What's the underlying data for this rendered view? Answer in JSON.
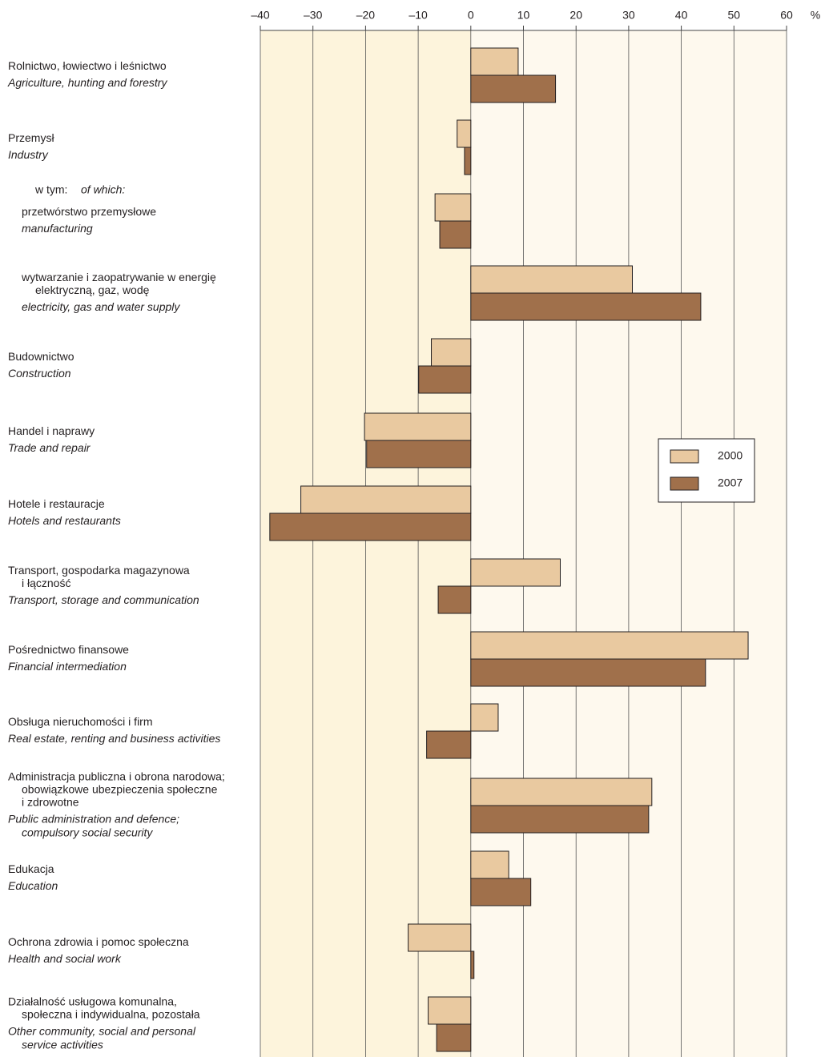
{
  "chart_data": {
    "type": "bar",
    "orientation": "horizontal",
    "unit_label": "%",
    "annotations": [
      "w tym:",
      "of which:"
    ],
    "categories": [
      {
        "pl": [
          "Rolnictwo, łowiectwo i leśnictwo"
        ],
        "en": [
          "Agriculture, hunting and forestry"
        ]
      },
      {
        "pl": [
          "Przemysł"
        ],
        "en": [
          "Industry"
        ]
      },
      {
        "pl": [
          "przetwórstwo przemysłowe"
        ],
        "en": [
          "manufacturing"
        ]
      },
      {
        "pl": [
          "wytwarzanie i zaopatrywanie w energię",
          "elektryczną, gaz, wodę"
        ],
        "en": [
          "electricity, gas and water supply"
        ]
      },
      {
        "pl": [
          "Budownictwo"
        ],
        "en": [
          "Construction"
        ]
      },
      {
        "pl": [
          "Handel i naprawy"
        ],
        "en": [
          "Trade and repair"
        ]
      },
      {
        "pl": [
          "Hotele i restauracje"
        ],
        "en": [
          "Hotels and restaurants"
        ]
      },
      {
        "pl": [
          "Transport, gospodarka magazynowa",
          "i łączność"
        ],
        "en": [
          "Transport, storage and communication"
        ]
      },
      {
        "pl": [
          "Pośrednictwo finansowe"
        ],
        "en": [
          "Financial intermediation"
        ]
      },
      {
        "pl": [
          "Obsługa nieruchomości i firm"
        ],
        "en": [
          "Real estate, renting and business activities"
        ]
      },
      {
        "pl": [
          "Administracja publiczna i obrona narodowa;",
          "obowiązkowe ubezpieczenia społeczne",
          "i zdrowotne"
        ],
        "en": [
          "Public administration and defence;",
          "compulsory social security"
        ]
      },
      {
        "pl": [
          "Edukacja"
        ],
        "en": [
          "Education"
        ]
      },
      {
        "pl": [
          "Ochrona zdrowia i pomoc społeczna"
        ],
        "en": [
          "Health and social work"
        ]
      },
      {
        "pl": [
          "Działalność usługowa komunalna,",
          "społeczna i indywidualna, pozostała"
        ],
        "en": [
          "Other community, social and personal",
          "service activities"
        ]
      }
    ],
    "series": [
      {
        "name": "2000",
        "color": "#e9c9a0",
        "values": [
          9.0,
          -2.6,
          -6.8,
          30.7,
          -7.5,
          -20.2,
          -32.3,
          17.0,
          52.7,
          5.2,
          34.4,
          7.2,
          -11.9,
          -8.1
        ]
      },
      {
        "name": "2007",
        "color": "#a0704b",
        "values": [
          16.1,
          -1.2,
          -5.9,
          43.7,
          -9.9,
          -19.8,
          -38.2,
          -6.2,
          44.6,
          -8.4,
          33.8,
          11.4,
          0.6,
          -6.5
        ]
      }
    ],
    "xlim": [
      -40,
      60
    ],
    "xticks": [
      {
        "value": -40,
        "label": "–40"
      },
      {
        "value": -30,
        "label": "–30"
      },
      {
        "value": -20,
        "label": "–20"
      },
      {
        "value": -10,
        "label": "–10"
      },
      0,
      10,
      20,
      30,
      40,
      50,
      60
    ],
    "grid": true,
    "legend": "right"
  }
}
